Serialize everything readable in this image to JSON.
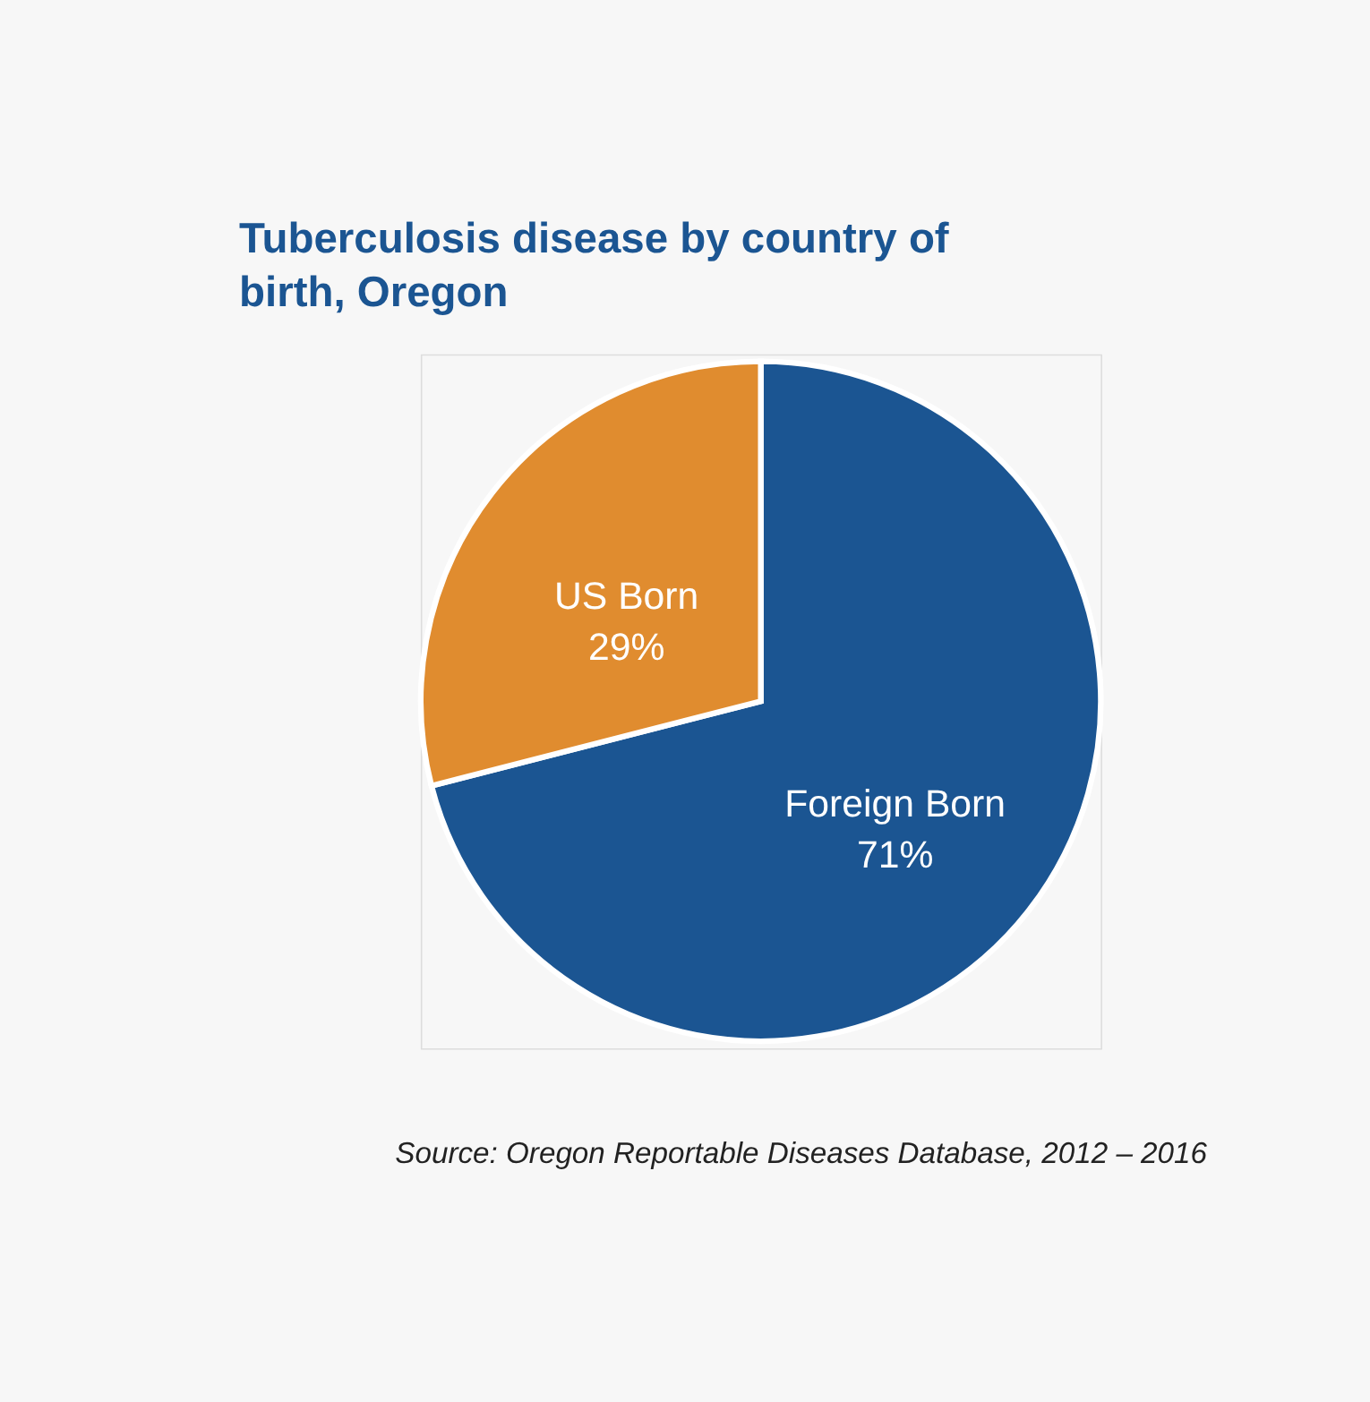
{
  "chart_data": {
    "type": "pie",
    "title": "Tuberculosis disease by country of birth, Oregon",
    "categories": [
      "Foreign Born",
      "US Born"
    ],
    "values": [
      71,
      29
    ],
    "colors": [
      "#1b5592",
      "#e08c2f"
    ],
    "value_labels": [
      "71%",
      "29%"
    ],
    "annotations": [
      "Source: Oregon Reportable Diseases Database, 2012 – 2016"
    ]
  }
}
